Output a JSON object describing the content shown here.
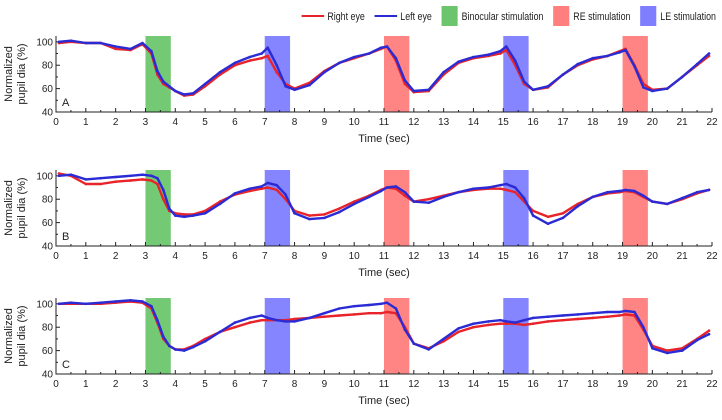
{
  "legend": {
    "right_eye": "Right eye",
    "left_eye": "Left eye",
    "binocular": "Binocular stimulation",
    "re_stim": "RE stimulation",
    "le_stim": "LE stimulation"
  },
  "colors": {
    "right_eye": "#e8242a",
    "left_eye": "#2b2bd6",
    "binocular": "#5cbf5c",
    "re_stim": "#ff7070",
    "le_stim": "#7070ff"
  },
  "chart_data": [
    {
      "type": "line",
      "panel_label": "A",
      "xlabel": "Time (sec)",
      "ylabel_line1": "Normalized",
      "ylabel_line2": "pupil dia (%)",
      "xlim": [
        0,
        22
      ],
      "ylim": [
        40,
        105
      ],
      "xticks": [
        "0",
        "1",
        "2",
        "3",
        "4",
        "5",
        "6",
        "7",
        "8",
        "9",
        "10",
        "11",
        "12",
        "13",
        "14",
        "15",
        "16",
        "17",
        "18",
        "19",
        "20",
        "21",
        "22"
      ],
      "yticks": [
        "40",
        "60",
        "80",
        "100"
      ],
      "stimulations": [
        {
          "type": "binocular",
          "start": 3.0,
          "end": 3.85
        },
        {
          "type": "le",
          "start": 7.0,
          "end": 7.85
        },
        {
          "type": "re",
          "start": 11.0,
          "end": 11.85
        },
        {
          "type": "le",
          "start": 15.0,
          "end": 15.85
        },
        {
          "type": "re",
          "start": 19.0,
          "end": 19.85
        }
      ],
      "series": [
        {
          "name": "Right eye",
          "x": [
            0.1,
            0.5,
            1,
            1.5,
            2,
            2.5,
            2.9,
            3.2,
            3.4,
            3.6,
            3.8,
            4,
            4.3,
            4.6,
            5,
            5.5,
            6,
            6.5,
            6.9,
            7.1,
            7.4,
            7.7,
            8,
            8.5,
            9,
            9.5,
            10,
            10.5,
            10.9,
            11.1,
            11.4,
            11.7,
            12,
            12.5,
            13,
            13.5,
            14,
            14.5,
            14.9,
            15.1,
            15.4,
            15.7,
            16,
            16.5,
            17,
            17.5,
            18,
            18.5,
            18.9,
            19.1,
            19.4,
            19.7,
            20,
            20.5,
            21,
            21.5,
            21.9
          ],
          "values": [
            99,
            100,
            99,
            99,
            94,
            93,
            98,
            90,
            72,
            64,
            61,
            58,
            54,
            55,
            62,
            72,
            80,
            84,
            86,
            88,
            74,
            64,
            60,
            65,
            75,
            82,
            86,
            90,
            94,
            96,
            84,
            64,
            57,
            58,
            72,
            82,
            86,
            88,
            90,
            93,
            80,
            64,
            59,
            61,
            72,
            80,
            85,
            88,
            92,
            94,
            80,
            64,
            59,
            60,
            70,
            80,
            88
          ]
        },
        {
          "name": "Left eye",
          "x": [
            0.1,
            0.5,
            1,
            1.5,
            2,
            2.5,
            2.9,
            3.2,
            3.4,
            3.6,
            3.8,
            4,
            4.3,
            4.6,
            5,
            5.5,
            6,
            6.5,
            6.9,
            7.1,
            7.4,
            7.7,
            8,
            8.5,
            9,
            9.5,
            10,
            10.5,
            10.9,
            11.1,
            11.4,
            11.7,
            12,
            12.5,
            13,
            13.5,
            14,
            14.5,
            14.9,
            15.1,
            15.4,
            15.7,
            16,
            16.5,
            17,
            17.5,
            18,
            18.5,
            18.9,
            19.1,
            19.4,
            19.7,
            20,
            20.5,
            21,
            21.5,
            21.9
          ],
          "values": [
            100,
            101,
            99,
            99,
            96,
            94,
            99,
            92,
            75,
            66,
            62,
            58,
            55,
            56,
            64,
            74,
            82,
            87,
            90,
            95,
            80,
            62,
            59,
            63,
            74,
            82,
            87,
            90,
            95,
            96,
            86,
            67,
            58,
            59,
            74,
            83,
            87,
            89,
            92,
            96,
            84,
            66,
            59,
            62,
            72,
            81,
            86,
            88,
            91,
            93,
            79,
            61,
            58,
            60,
            70,
            81,
            90
          ]
        }
      ]
    },
    {
      "type": "line",
      "panel_label": "B",
      "xlabel": "Time (sec)",
      "ylabel_line1": "Normalized",
      "ylabel_line2": "pupil dia (%)",
      "xlim": [
        0,
        22
      ],
      "ylim": [
        40,
        105
      ],
      "xticks": [
        "0",
        "1",
        "2",
        "3",
        "4",
        "5",
        "6",
        "7",
        "8",
        "9",
        "10",
        "11",
        "12",
        "13",
        "14",
        "15",
        "16",
        "17",
        "18",
        "19",
        "20",
        "21",
        "22"
      ],
      "yticks": [
        "40",
        "60",
        "80",
        "100"
      ],
      "stimulations": [
        {
          "type": "binocular",
          "start": 3.0,
          "end": 3.85
        },
        {
          "type": "le",
          "start": 7.0,
          "end": 7.85
        },
        {
          "type": "re",
          "start": 11.0,
          "end": 11.85
        },
        {
          "type": "le",
          "start": 15.0,
          "end": 15.85
        },
        {
          "type": "re",
          "start": 19.0,
          "end": 19.85
        }
      ],
      "series": [
        {
          "name": "Right eye",
          "x": [
            0.1,
            0.5,
            1,
            1.5,
            2,
            2.5,
            2.9,
            3.2,
            3.4,
            3.6,
            3.8,
            4,
            4.3,
            4.6,
            5,
            5.5,
            6,
            6.5,
            6.9,
            7.1,
            7.4,
            7.7,
            8,
            8.5,
            9,
            9.5,
            10,
            10.5,
            10.9,
            11.1,
            11.4,
            11.7,
            12,
            12.5,
            13,
            13.5,
            14,
            14.5,
            14.9,
            15.1,
            15.4,
            15.7,
            16,
            16.5,
            17,
            17.5,
            18,
            18.5,
            18.9,
            19.1,
            19.4,
            19.7,
            20,
            20.5,
            21,
            21.5,
            21.9
          ],
          "values": [
            102,
            100,
            93,
            93,
            95,
            96,
            97,
            96,
            93,
            80,
            70,
            68,
            67,
            67,
            70,
            78,
            84,
            87,
            89,
            90,
            88,
            80,
            70,
            66,
            67,
            72,
            78,
            83,
            88,
            90,
            89,
            83,
            78,
            80,
            83,
            86,
            88,
            89,
            89,
            88,
            86,
            78,
            70,
            65,
            68,
            76,
            82,
            85,
            86,
            87,
            86,
            82,
            78,
            76,
            80,
            85,
            88
          ]
        },
        {
          "name": "Left eye",
          "x": [
            0.1,
            0.5,
            1,
            1.5,
            2,
            2.5,
            2.9,
            3.2,
            3.4,
            3.6,
            3.8,
            4,
            4.3,
            4.6,
            5,
            5.5,
            6,
            6.5,
            6.9,
            7.1,
            7.4,
            7.7,
            8,
            8.5,
            9,
            9.5,
            10,
            10.5,
            10.9,
            11.1,
            11.4,
            11.7,
            12,
            12.5,
            13,
            13.5,
            14,
            14.5,
            14.9,
            15.1,
            15.4,
            15.7,
            16,
            16.5,
            17,
            17.5,
            18,
            18.5,
            18.9,
            19.1,
            19.4,
            19.7,
            20,
            20.5,
            21,
            21.5,
            21.9
          ],
          "values": [
            100,
            101,
            97,
            98,
            99,
            100,
            101,
            100,
            98,
            88,
            72,
            66,
            65,
            66,
            68,
            76,
            85,
            89,
            91,
            94,
            92,
            84,
            68,
            63,
            64,
            69,
            76,
            82,
            87,
            90,
            91,
            86,
            78,
            77,
            82,
            86,
            89,
            90,
            92,
            93,
            90,
            81,
            66,
            59,
            64,
            74,
            82,
            86,
            87,
            88,
            87,
            83,
            78,
            76,
            81,
            86,
            88
          ]
        }
      ]
    },
    {
      "type": "line",
      "panel_label": "C",
      "xlabel": "Time (sec)",
      "ylabel_line1": "Normalized",
      "ylabel_line2": "pupil dia (%)",
      "xlim": [
        0,
        22
      ],
      "ylim": [
        40,
        105
      ],
      "xticks": [
        "0",
        "1",
        "2",
        "3",
        "4",
        "5",
        "6",
        "7",
        "8",
        "9",
        "10",
        "11",
        "12",
        "13",
        "14",
        "15",
        "16",
        "17",
        "18",
        "19",
        "20",
        "21",
        "22"
      ],
      "yticks": [
        "40",
        "60",
        "80",
        "100"
      ],
      "stimulations": [
        {
          "type": "binocular",
          "start": 3.0,
          "end": 3.85
        },
        {
          "type": "le",
          "start": 7.0,
          "end": 7.85
        },
        {
          "type": "re",
          "start": 11.0,
          "end": 11.85
        },
        {
          "type": "le",
          "start": 15.0,
          "end": 15.85
        },
        {
          "type": "re",
          "start": 19.0,
          "end": 19.85
        }
      ],
      "series": [
        {
          "name": "Right eye",
          "x": [
            0.1,
            0.5,
            1,
            1.5,
            2,
            2.5,
            2.9,
            3.2,
            3.4,
            3.6,
            3.8,
            4,
            4.3,
            4.6,
            5,
            5.5,
            6,
            6.5,
            6.9,
            7.1,
            7.4,
            7.7,
            8,
            8.5,
            9,
            9.5,
            10,
            10.5,
            10.9,
            11.1,
            11.4,
            11.7,
            12,
            12.5,
            13,
            13.5,
            14,
            14.5,
            14.9,
            15.1,
            15.4,
            15.7,
            16,
            16.5,
            17,
            17.5,
            18,
            18.5,
            18.9,
            19.1,
            19.4,
            19.7,
            20,
            20.5,
            21,
            21.5,
            21.9
          ],
          "values": [
            100,
            100,
            100,
            100,
            101,
            102,
            101,
            96,
            84,
            70,
            64,
            61,
            61,
            64,
            70,
            76,
            80,
            84,
            86,
            86,
            86,
            86,
            87,
            88,
            89,
            90,
            91,
            92,
            92,
            93,
            92,
            80,
            66,
            62,
            68,
            76,
            80,
            82,
            83,
            83,
            83,
            82,
            83,
            85,
            86,
            87,
            88,
            89,
            90,
            91,
            90,
            78,
            64,
            60,
            62,
            70,
            77
          ]
        },
        {
          "name": "Left eye",
          "x": [
            0.1,
            0.5,
            1,
            1.5,
            2,
            2.5,
            2.9,
            3.2,
            3.4,
            3.6,
            3.8,
            4,
            4.3,
            4.6,
            5,
            5.5,
            6,
            6.5,
            6.9,
            7.1,
            7.4,
            7.7,
            8,
            8.5,
            9,
            9.5,
            10,
            10.5,
            10.9,
            11.1,
            11.4,
            11.7,
            12,
            12.5,
            13,
            13.5,
            14,
            14.5,
            14.9,
            15.1,
            15.4,
            15.7,
            16,
            16.5,
            17,
            17.5,
            18,
            18.5,
            18.9,
            19.1,
            19.4,
            19.7,
            20,
            20.5,
            21,
            21.5,
            21.9
          ],
          "values": [
            100,
            101,
            100,
            101,
            102,
            103,
            102,
            98,
            86,
            72,
            64,
            61,
            60,
            63,
            68,
            76,
            84,
            88,
            90,
            88,
            86,
            85,
            85,
            88,
            92,
            96,
            98,
            99,
            100,
            101,
            96,
            78,
            66,
            61,
            70,
            79,
            83,
            85,
            86,
            85,
            84,
            86,
            88,
            89,
            90,
            91,
            92,
            93,
            93,
            94,
            93,
            80,
            62,
            58,
            60,
            69,
            74
          ]
        }
      ]
    }
  ]
}
